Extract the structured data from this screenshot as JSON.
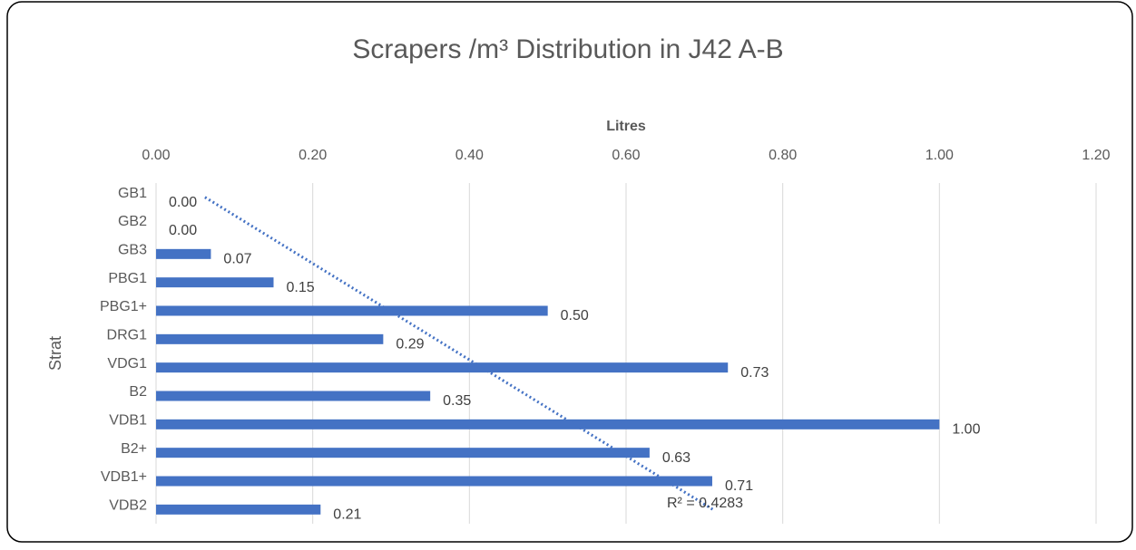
{
  "chart_data": {
    "type": "hbar",
    "title": "Scrapers /m³ Distribution in J42 A-B",
    "x_label": "Litres",
    "y_label": "Strat",
    "categories": [
      "GB1",
      "GB2",
      "GB3",
      "PBG1",
      "PBG1+",
      "DRG1",
      "VDG1",
      "B2",
      "VDB1",
      "B2+",
      "VDB1+",
      "VDB2"
    ],
    "values": [
      0,
      0,
      0.07,
      0.15,
      0.5,
      0.29,
      0.73,
      0.35,
      1,
      0.63,
      0.71,
      0.21
    ],
    "value_labels": [
      "0.00",
      "0.00",
      "0.07",
      "0.15",
      "0.50",
      "0.29",
      "0.73",
      "0.35",
      "1.00",
      "0.63",
      "0.71",
      "0.21"
    ],
    "color": "#4472c4",
    "xlim": [
      0,
      1.2
    ],
    "xticks": [
      {
        "value": 0,
        "label": "0.00"
      },
      {
        "value": 0.2,
        "label": "0.20"
      },
      {
        "value": 0.4,
        "label": "0.40"
      },
      {
        "value": 0.6,
        "label": "0.60"
      },
      {
        "value": 0.8,
        "label": "0.80"
      },
      {
        "value": 1,
        "label": "1.00"
      },
      {
        "value": 1.2,
        "label": "1.20"
      }
    ],
    "grid": true,
    "trendline": "linear",
    "trendline_color": "#4472c4",
    "annotation": "R² = 0.4283"
  }
}
